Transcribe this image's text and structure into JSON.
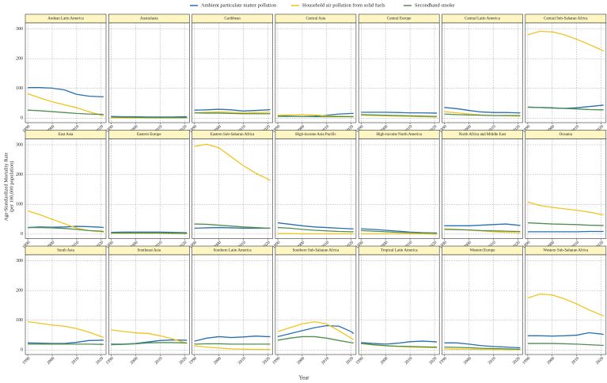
{
  "chart_data": {
    "type": "line",
    "xlabel": "Year",
    "ylabel": [
      "Age-Standardized Mortality Rate",
      "(per 100,000 population)"
    ],
    "x": [
      1990,
      1995,
      2000,
      2005,
      2010,
      2015,
      2020,
      2021
    ],
    "xlim": [
      1989,
      2022
    ],
    "xticks": [
      1990,
      2000,
      2010,
      2020
    ],
    "ylim": [
      -15,
      320
    ],
    "yticks": [
      0,
      100,
      200,
      300
    ],
    "grid": true,
    "series": [
      {
        "name": "Ambient particulate matter pollution",
        "color": "#2a6fb0"
      },
      {
        "name": "Household air pollution from solid fuels",
        "color": "#f2c31b"
      },
      {
        "name": "Secondhand smoke",
        "color": "#4f8f4f"
      }
    ],
    "panels": [
      {
        "title": "Andean Latin America",
        "values": [
          [
            103,
            103,
            101,
            95,
            80,
            74,
            72,
            72
          ],
          [
            82,
            68,
            55,
            45,
            35,
            22,
            10,
            8
          ],
          [
            27,
            25,
            22,
            19,
            16,
            14,
            13,
            13
          ]
        ]
      },
      {
        "title": "Australasia",
        "values": [
          [
            6,
            5,
            5,
            4,
            4,
            4,
            5,
            5
          ],
          [
            1,
            1,
            1,
            1,
            1,
            1,
            1,
            1
          ],
          [
            4,
            3,
            3,
            2,
            2,
            2,
            2,
            2
          ]
        ]
      },
      {
        "title": "Caribbean",
        "values": [
          [
            27,
            28,
            30,
            28,
            24,
            26,
            28,
            29
          ],
          [
            18,
            20,
            21,
            20,
            18,
            19,
            20,
            20
          ],
          [
            18,
            17,
            17,
            16,
            15,
            15,
            15,
            15
          ]
        ]
      },
      {
        "title": "Central Asia",
        "values": [
          [
            8,
            7,
            6,
            7,
            10,
            14,
            16,
            16
          ],
          [
            10,
            11,
            12,
            11,
            8,
            7,
            6,
            6
          ],
          [
            6,
            6,
            6,
            5,
            5,
            5,
            5,
            5
          ]
        ]
      },
      {
        "title": "Central Europe",
        "values": [
          [
            20,
            20,
            20,
            19,
            18,
            18,
            17,
            17
          ],
          [
            10,
            9,
            8,
            7,
            6,
            5,
            4,
            4
          ],
          [
            12,
            11,
            10,
            9,
            8,
            7,
            6,
            6
          ]
        ]
      },
      {
        "title": "Central Latin America",
        "values": [
          [
            36,
            32,
            26,
            21,
            19,
            19,
            18,
            18
          ],
          [
            22,
            18,
            14,
            11,
            9,
            8,
            7,
            7
          ],
          [
            14,
            12,
            11,
            10,
            9,
            9,
            9,
            9
          ]
        ]
      },
      {
        "title": "Central Sub-Saharan Africa",
        "values": [
          [
            37,
            36,
            34,
            33,
            35,
            39,
            43,
            44
          ],
          [
            280,
            292,
            290,
            280,
            265,
            248,
            230,
            225
          ],
          [
            37,
            36,
            35,
            33,
            31,
            29,
            28,
            28
          ]
        ]
      },
      {
        "title": "East Asia",
        "values": [
          [
            22,
            24,
            23,
            24,
            26,
            25,
            23,
            22
          ],
          [
            78,
            65,
            50,
            35,
            20,
            12,
            8,
            7
          ],
          [
            22,
            22,
            21,
            19,
            16,
            12,
            10,
            9
          ]
        ]
      },
      {
        "title": "Eastern Europe",
        "values": [
          [
            6,
            7,
            7,
            7,
            7,
            6,
            5,
            5
          ],
          [
            3,
            3,
            3,
            3,
            3,
            2,
            2,
            2
          ],
          [
            4,
            4,
            4,
            4,
            4,
            3,
            3,
            3
          ]
        ]
      },
      {
        "title": "Eastern Sub-Saharan Africa",
        "values": [
          [
            20,
            21,
            22,
            21,
            20,
            20,
            20,
            20
          ],
          [
            295,
            302,
            290,
            260,
            230,
            205,
            185,
            180
          ],
          [
            34,
            33,
            30,
            27,
            24,
            22,
            20,
            20
          ]
        ]
      },
      {
        "title": "High-income Asia Pacific",
        "values": [
          [
            38,
            33,
            28,
            24,
            22,
            20,
            18,
            18
          ],
          [
            2,
            2,
            1,
            1,
            1,
            1,
            1,
            1
          ],
          [
            22,
            20,
            16,
            13,
            11,
            9,
            8,
            8
          ]
        ]
      },
      {
        "title": "High-income North America",
        "values": [
          [
            18,
            16,
            13,
            10,
            7,
            5,
            4,
            4
          ],
          [
            1,
            1,
            1,
            1,
            1,
            1,
            0,
            0
          ],
          [
            12,
            10,
            8,
            6,
            5,
            4,
            3,
            3
          ]
        ]
      },
      {
        "title": "North Africa and Middle East",
        "values": [
          [
            28,
            28,
            28,
            30,
            32,
            34,
            30,
            29
          ],
          [
            18,
            16,
            14,
            11,
            8,
            6,
            5,
            4
          ],
          [
            16,
            15,
            14,
            12,
            11,
            10,
            9,
            9
          ]
        ]
      },
      {
        "title": "Oceania",
        "values": [
          [
            8,
            8,
            8,
            8,
            8,
            9,
            9,
            9
          ],
          [
            108,
            96,
            90,
            85,
            80,
            74,
            66,
            65
          ],
          [
            38,
            36,
            34,
            33,
            32,
            30,
            29,
            29
          ]
        ]
      },
      {
        "title": "South Asia",
        "values": [
          [
            24,
            23,
            22,
            22,
            26,
            32,
            33,
            33
          ],
          [
            95,
            90,
            84,
            80,
            72,
            60,
            45,
            42
          ],
          [
            20,
            20,
            20,
            20,
            20,
            20,
            19,
            19
          ]
        ]
      },
      {
        "title": "Southeast Asia",
        "values": [
          [
            20,
            20,
            22,
            27,
            32,
            34,
            33,
            33
          ],
          [
            68,
            62,
            58,
            56,
            48,
            38,
            25,
            22
          ],
          [
            18,
            19,
            21,
            24,
            25,
            25,
            24,
            24
          ]
        ]
      },
      {
        "title": "Southern Latin America",
        "values": [
          [
            30,
            40,
            45,
            42,
            44,
            47,
            45,
            45
          ],
          [
            14,
            10,
            7,
            4,
            3,
            2,
            2,
            2
          ],
          [
            20,
            21,
            21,
            20,
            20,
            20,
            20,
            20
          ]
        ]
      },
      {
        "title": "Southern Sub-Saharan Africa",
        "values": [
          [
            45,
            55,
            65,
            75,
            82,
            80,
            62,
            55
          ],
          [
            62,
            75,
            88,
            95,
            88,
            65,
            40,
            35
          ],
          [
            33,
            40,
            45,
            45,
            40,
            32,
            25,
            24
          ]
        ]
      },
      {
        "title": "Tropical Latin America",
        "values": [
          [
            25,
            22,
            20,
            23,
            28,
            30,
            28,
            27
          ],
          [
            22,
            17,
            14,
            12,
            10,
            9,
            8,
            8
          ],
          [
            22,
            18,
            15,
            13,
            12,
            11,
            10,
            10
          ]
        ]
      },
      {
        "title": "Western Europe",
        "values": [
          [
            24,
            24,
            20,
            15,
            12,
            10,
            8,
            8
          ],
          [
            4,
            3,
            3,
            2,
            2,
            1,
            1,
            1
          ],
          [
            10,
            9,
            8,
            6,
            5,
            4,
            3,
            3
          ]
        ]
      },
      {
        "title": "Western Sub-Saharan Africa",
        "values": [
          [
            48,
            48,
            47,
            48,
            50,
            58,
            54,
            52
          ],
          [
            175,
            188,
            185,
            172,
            155,
            135,
            118,
            115
          ],
          [
            22,
            22,
            22,
            21,
            20,
            18,
            16,
            16
          ]
        ]
      }
    ]
  }
}
